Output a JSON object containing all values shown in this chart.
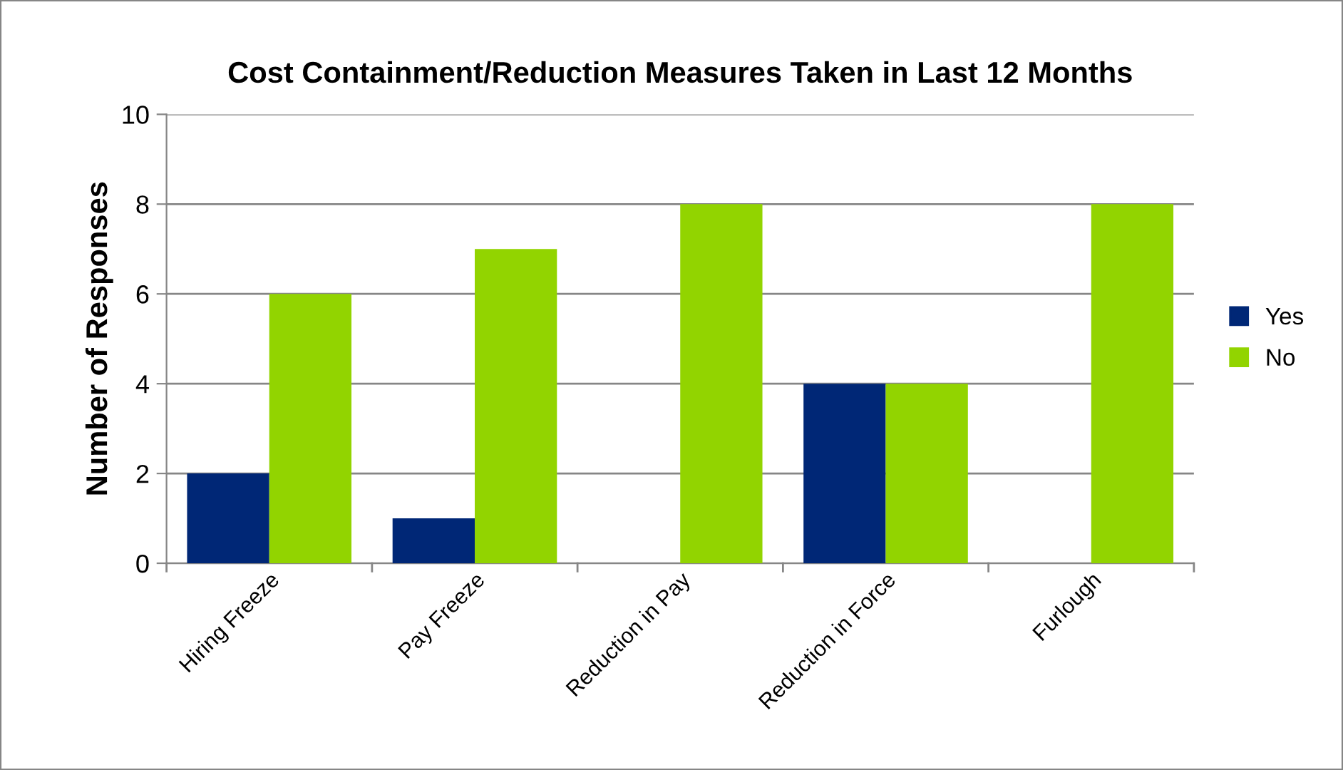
{
  "chart_data": {
    "type": "bar",
    "title": "Cost Containment/Reduction Measures Taken in Last 12 Months",
    "ylabel": "Number of Responses",
    "categories": [
      "Hiring Freeze",
      "Pay Freeze",
      "Reduction in Pay",
      "Reduction in Force",
      "Furlough"
    ],
    "series": [
      {
        "name": "Yes",
        "color": "#002776",
        "values": [
          2,
          1,
          0,
          4,
          0
        ]
      },
      {
        "name": "No",
        "color": "#92d400",
        "values": [
          6,
          7,
          8,
          4,
          8
        ]
      }
    ],
    "ylim": [
      0,
      10
    ],
    "yticks": [
      0,
      2,
      4,
      6,
      8,
      10
    ],
    "grid": "y",
    "legend": "right"
  }
}
